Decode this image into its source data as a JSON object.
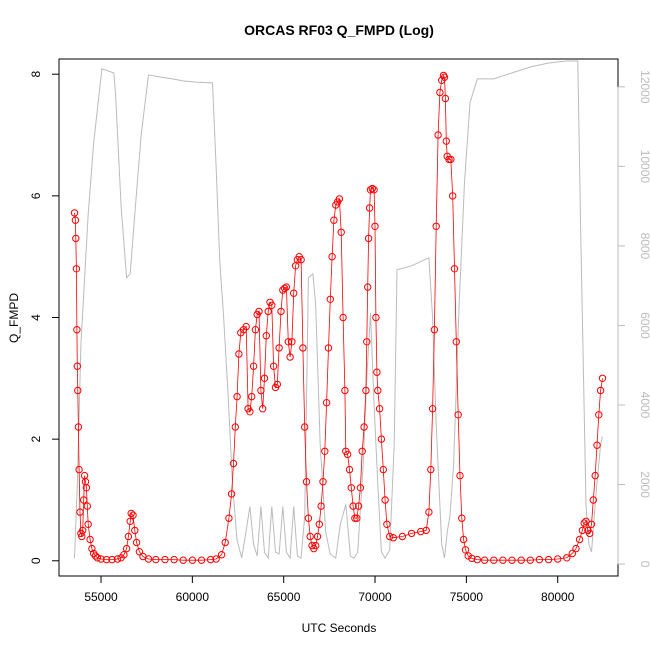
{
  "chart_data": {
    "type": "scatter",
    "title": "ORCAS RF03 Q_FMPD (Log)",
    "xlabel": "UTC Seconds",
    "ylabel": "Q_FMPD",
    "xlim": [
      52700,
      83300
    ],
    "ylim": [
      -0.25,
      8.25
    ],
    "y2lim": [
      -300,
      12700
    ],
    "xticks": [
      55000,
      60000,
      65000,
      70000,
      75000,
      80000
    ],
    "yticks": [
      0,
      2,
      4,
      6,
      8
    ],
    "y2ticks": [
      0,
      2000,
      4000,
      6000,
      8000,
      10000,
      12000
    ],
    "grid": false,
    "colors": {
      "points": "#ff0000",
      "secondary": "#bbbbbb",
      "axes": "#000000"
    },
    "series": [
      {
        "role": "primary",
        "marker": "open-circle",
        "points": [
          [
            53550,
            5.72
          ],
          [
            53600,
            5.6
          ],
          [
            53620,
            5.3
          ],
          [
            53650,
            4.8
          ],
          [
            53680,
            3.8
          ],
          [
            53700,
            3.2
          ],
          [
            53730,
            2.8
          ],
          [
            53760,
            2.2
          ],
          [
            53800,
            1.5
          ],
          [
            53850,
            0.8
          ],
          [
            53900,
            0.45
          ],
          [
            53950,
            0.4
          ],
          [
            54000,
            0.5
          ],
          [
            54050,
            1.0
          ],
          [
            54100,
            1.4
          ],
          [
            54150,
            1.3
          ],
          [
            54200,
            1.2
          ],
          [
            54250,
            0.9
          ],
          [
            54300,
            0.6
          ],
          [
            54400,
            0.35
          ],
          [
            54500,
            0.2
          ],
          [
            54600,
            0.12
          ],
          [
            54700,
            0.08
          ],
          [
            54800,
            0.05
          ],
          [
            55000,
            0.03
          ],
          [
            55300,
            0.02
          ],
          [
            55600,
            0.02
          ],
          [
            55900,
            0.03
          ],
          [
            56100,
            0.05
          ],
          [
            56250,
            0.1
          ],
          [
            56400,
            0.2
          ],
          [
            56500,
            0.4
          ],
          [
            56600,
            0.65
          ],
          [
            56650,
            0.78
          ],
          [
            56750,
            0.75
          ],
          [
            56850,
            0.5
          ],
          [
            56950,
            0.3
          ],
          [
            57100,
            0.15
          ],
          [
            57300,
            0.07
          ],
          [
            57600,
            0.03
          ],
          [
            58000,
            0.02
          ],
          [
            58500,
            0.02
          ],
          [
            59000,
            0.02
          ],
          [
            59500,
            0.01
          ],
          [
            60000,
            0.01
          ],
          [
            60500,
            0.01
          ],
          [
            61000,
            0.02
          ],
          [
            61300,
            0.03
          ],
          [
            61600,
            0.1
          ],
          [
            61800,
            0.3
          ],
          [
            62000,
            0.7
          ],
          [
            62150,
            1.1
          ],
          [
            62250,
            1.6
          ],
          [
            62350,
            2.2
          ],
          [
            62450,
            2.7
          ],
          [
            62550,
            3.4
          ],
          [
            62650,
            3.75
          ],
          [
            62800,
            3.8
          ],
          [
            62950,
            3.85
          ],
          [
            63050,
            2.5
          ],
          [
            63150,
            2.45
          ],
          [
            63250,
            2.7
          ],
          [
            63350,
            3.2
          ],
          [
            63450,
            3.8
          ],
          [
            63550,
            4.05
          ],
          [
            63650,
            4.1
          ],
          [
            63750,
            2.8
          ],
          [
            63850,
            2.5
          ],
          [
            63950,
            3.0
          ],
          [
            64050,
            3.7
          ],
          [
            64150,
            4.1
          ],
          [
            64250,
            4.25
          ],
          [
            64350,
            4.2
          ],
          [
            64450,
            3.2
          ],
          [
            64550,
            2.85
          ],
          [
            64650,
            2.9
          ],
          [
            64750,
            3.5
          ],
          [
            64850,
            4.1
          ],
          [
            64950,
            4.45
          ],
          [
            65050,
            4.48
          ],
          [
            65150,
            4.5
          ],
          [
            65250,
            3.6
          ],
          [
            65350,
            3.35
          ],
          [
            65450,
            3.6
          ],
          [
            65550,
            4.4
          ],
          [
            65650,
            4.85
          ],
          [
            65750,
            4.95
          ],
          [
            65850,
            5.0
          ],
          [
            65950,
            4.95
          ],
          [
            66050,
            3.5
          ],
          [
            66150,
            2.2
          ],
          [
            66250,
            1.3
          ],
          [
            66350,
            0.7
          ],
          [
            66450,
            0.4
          ],
          [
            66550,
            0.25
          ],
          [
            66650,
            0.2
          ],
          [
            66750,
            0.25
          ],
          [
            66850,
            0.4
          ],
          [
            66950,
            0.6
          ],
          [
            67050,
            0.9
          ],
          [
            67150,
            1.3
          ],
          [
            67250,
            1.8
          ],
          [
            67350,
            2.6
          ],
          [
            67450,
            3.5
          ],
          [
            67550,
            4.3
          ],
          [
            67650,
            5.0
          ],
          [
            67750,
            5.6
          ],
          [
            67850,
            5.85
          ],
          [
            67950,
            5.9
          ],
          [
            68050,
            5.95
          ],
          [
            68150,
            5.4
          ],
          [
            68250,
            4.0
          ],
          [
            68350,
            2.8
          ],
          [
            68400,
            1.8
          ],
          [
            68500,
            1.75
          ],
          [
            68600,
            1.5
          ],
          [
            68700,
            1.2
          ],
          [
            68800,
            0.9
          ],
          [
            68900,
            0.7
          ],
          [
            69000,
            0.7
          ],
          [
            69100,
            0.9
          ],
          [
            69200,
            1.2
          ],
          [
            69300,
            1.8
          ],
          [
            69400,
            2.2
          ],
          [
            69500,
            2.8
          ],
          [
            69550,
            3.6
          ],
          [
            69600,
            4.5
          ],
          [
            69650,
            5.3
          ],
          [
            69700,
            5.8
          ],
          [
            69750,
            6.1
          ],
          [
            69850,
            6.12
          ],
          [
            69950,
            6.1
          ],
          [
            70000,
            5.5
          ],
          [
            70050,
            4.0
          ],
          [
            70100,
            3.1
          ],
          [
            70150,
            2.8
          ],
          [
            70250,
            2.5
          ],
          [
            70350,
            2.0
          ],
          [
            70450,
            1.5
          ],
          [
            70550,
            1.0
          ],
          [
            70650,
            0.6
          ],
          [
            70800,
            0.4
          ],
          [
            71000,
            0.38
          ],
          [
            71500,
            0.4
          ],
          [
            72000,
            0.45
          ],
          [
            72500,
            0.48
          ],
          [
            72800,
            0.5
          ],
          [
            72950,
            0.8
          ],
          [
            73050,
            1.5
          ],
          [
            73150,
            2.5
          ],
          [
            73250,
            3.8
          ],
          [
            73350,
            5.5
          ],
          [
            73450,
            7.0
          ],
          [
            73550,
            7.7
          ],
          [
            73650,
            7.9
          ],
          [
            73750,
            7.98
          ],
          [
            73800,
            7.95
          ],
          [
            73850,
            7.6
          ],
          [
            73900,
            6.9
          ],
          [
            73950,
            6.65
          ],
          [
            74050,
            6.6
          ],
          [
            74150,
            6.6
          ],
          [
            74250,
            6.0
          ],
          [
            74350,
            4.8
          ],
          [
            74450,
            3.6
          ],
          [
            74550,
            2.4
          ],
          [
            74650,
            1.4
          ],
          [
            74750,
            0.7
          ],
          [
            74850,
            0.35
          ],
          [
            74950,
            0.18
          ],
          [
            75100,
            0.08
          ],
          [
            75300,
            0.04
          ],
          [
            75600,
            0.02
          ],
          [
            76000,
            0.01
          ],
          [
            76500,
            0.01
          ],
          [
            77000,
            0.01
          ],
          [
            77500,
            0.01
          ],
          [
            78000,
            0.01
          ],
          [
            78500,
            0.01
          ],
          [
            79000,
            0.02
          ],
          [
            79500,
            0.02
          ],
          [
            80000,
            0.03
          ],
          [
            80500,
            0.05
          ],
          [
            80800,
            0.12
          ],
          [
            81000,
            0.2
          ],
          [
            81200,
            0.35
          ],
          [
            81350,
            0.5
          ],
          [
            81450,
            0.62
          ],
          [
            81550,
            0.65
          ],
          [
            81650,
            0.5
          ],
          [
            81750,
            0.45
          ],
          [
            81850,
            0.6
          ],
          [
            81950,
            1.0
          ],
          [
            82050,
            1.4
          ],
          [
            82150,
            1.9
          ],
          [
            82250,
            2.4
          ],
          [
            82350,
            2.8
          ],
          [
            82450,
            3.0
          ]
        ]
      },
      {
        "role": "secondary",
        "axis": "right",
        "points": [
          [
            53550,
            150
          ],
          [
            53700,
            2000
          ],
          [
            53900,
            5500
          ],
          [
            54100,
            7200
          ],
          [
            54300,
            8800
          ],
          [
            54600,
            10600
          ],
          [
            55050,
            12450
          ],
          [
            55700,
            12350
          ],
          [
            55800,
            11800
          ],
          [
            56100,
            9000
          ],
          [
            56400,
            7200
          ],
          [
            56600,
            7300
          ],
          [
            56850,
            8800
          ],
          [
            57200,
            10800
          ],
          [
            57600,
            12300
          ],
          [
            58200,
            12250
          ],
          [
            58900,
            12200
          ],
          [
            59500,
            12150
          ],
          [
            60200,
            12120
          ],
          [
            61100,
            12100
          ],
          [
            61300,
            10000
          ],
          [
            61500,
            7600
          ],
          [
            61700,
            6300
          ],
          [
            61950,
            4300
          ],
          [
            62200,
            2000
          ],
          [
            62450,
            600
          ],
          [
            62700,
            150
          ],
          [
            62950,
            850
          ],
          [
            63150,
            1450
          ],
          [
            63350,
            500
          ],
          [
            63550,
            200
          ],
          [
            63750,
            1450
          ],
          [
            63950,
            300
          ],
          [
            64150,
            150
          ],
          [
            64350,
            1450
          ],
          [
            64550,
            300
          ],
          [
            64750,
            250
          ],
          [
            64950,
            1450
          ],
          [
            65150,
            300
          ],
          [
            65350,
            150
          ],
          [
            65550,
            1450
          ],
          [
            65750,
            200
          ],
          [
            65950,
            150
          ],
          [
            66150,
            1200
          ],
          [
            66350,
            7200
          ],
          [
            66600,
            7300
          ],
          [
            66750,
            6500
          ],
          [
            67000,
            3000
          ],
          [
            67300,
            800
          ],
          [
            67550,
            250
          ],
          [
            67850,
            150
          ],
          [
            68100,
            1000
          ],
          [
            68400,
            1500
          ],
          [
            68650,
            200
          ],
          [
            68850,
            150
          ],
          [
            69050,
            300
          ],
          [
            69350,
            2500
          ],
          [
            69550,
            4700
          ],
          [
            69750,
            6300
          ],
          [
            69950,
            4000
          ],
          [
            70150,
            2000
          ],
          [
            70350,
            300
          ],
          [
            70550,
            150
          ],
          [
            70800,
            350
          ],
          [
            71050,
            3000
          ],
          [
            71200,
            7400
          ],
          [
            72000,
            7500
          ],
          [
            72950,
            7700
          ],
          [
            73150,
            6200
          ],
          [
            73350,
            3500
          ],
          [
            73650,
            500
          ],
          [
            73800,
            150
          ],
          [
            73950,
            800
          ],
          [
            74100,
            1200
          ],
          [
            74300,
            2500
          ],
          [
            74600,
            6500
          ],
          [
            74900,
            9600
          ],
          [
            75200,
            11600
          ],
          [
            75600,
            12200
          ],
          [
            76500,
            12200
          ],
          [
            77500,
            12350
          ],
          [
            78500,
            12500
          ],
          [
            79500,
            12600
          ],
          [
            80500,
            12650
          ],
          [
            81100,
            12650
          ],
          [
            81250,
            8500
          ],
          [
            81400,
            5000
          ],
          [
            81550,
            1500
          ],
          [
            81700,
            500
          ],
          [
            81850,
            300
          ],
          [
            82100,
            1800
          ],
          [
            82350,
            3000
          ],
          [
            82450,
            3200
          ]
        ]
      }
    ]
  }
}
